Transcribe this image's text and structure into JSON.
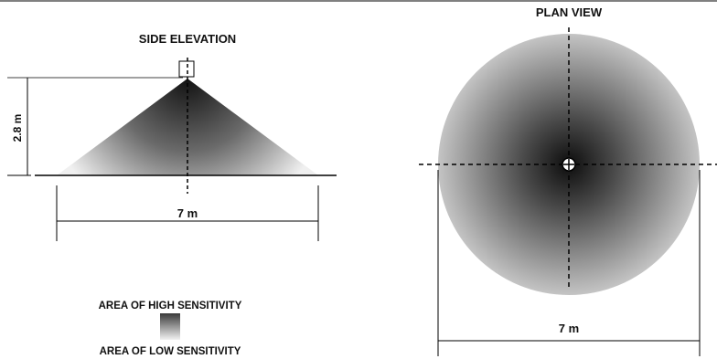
{
  "side_elevation": {
    "title": "SIDE ELEVATION",
    "height_label": "2.8 m",
    "width_label": "7 m"
  },
  "plan_view": {
    "title": "PLAN VIEW",
    "width_label": "7 m"
  },
  "legend": {
    "high_label": "AREA OF HIGH SENSITIVITY",
    "low_label": "AREA OF LOW SENSITIVITY"
  },
  "colors": {
    "high": "#1a1a1a",
    "low": "#f2f2f2",
    "line": "#000000"
  }
}
